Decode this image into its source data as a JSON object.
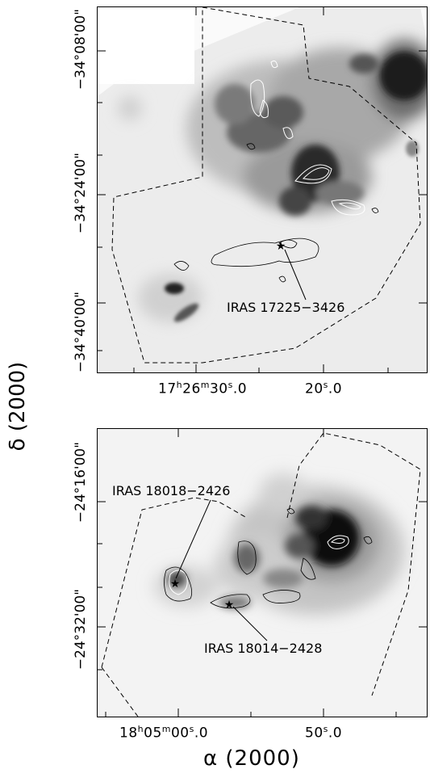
{
  "figure": {
    "xaxis_title": "α (2000)",
    "yaxis_title": "δ (2000)"
  },
  "top_panel": {
    "dec_ticks": [
      "−34°08′00″",
      "−34°24′00″",
      "−34°40′00″"
    ],
    "dec_ticks_display": [
      "−34°08'00\"",
      "−34°24'00\"",
      "−34°40'00\""
    ],
    "ra_ticks": [
      "17h26m30s.0",
      "20s.0"
    ],
    "ra_main": "17",
    "ra_main_h": "h",
    "ra_main_min": "26",
    "ra_main_m": "m",
    "ra_main_sec": "30",
    "ra_main_s": "s",
    "ra_main_frac": ".0",
    "ra_second_sec": "20",
    "ra_second_s": "s",
    "ra_second_frac": ".0",
    "source_label": "IRAS 17225−3426"
  },
  "bottom_panel": {
    "dec_ticks_display": [
      "−24°16'00\"",
      "−24°32'00\""
    ],
    "ra_main": "18",
    "ra_main_h": "h",
    "ra_main_min": "05",
    "ra_main_m": "m",
    "ra_main_sec": "00",
    "ra_main_s": "s",
    "ra_main_frac": ".0",
    "ra_second_sec": "50",
    "ra_second_s": "s",
    "ra_second_frac": ".0",
    "source_labels": [
      "IRAS 18018−2426",
      "IRAS 18014−2428"
    ]
  },
  "colors": {
    "frame": "#000000",
    "contour": "#ffffff",
    "dashes": "#000000"
  }
}
